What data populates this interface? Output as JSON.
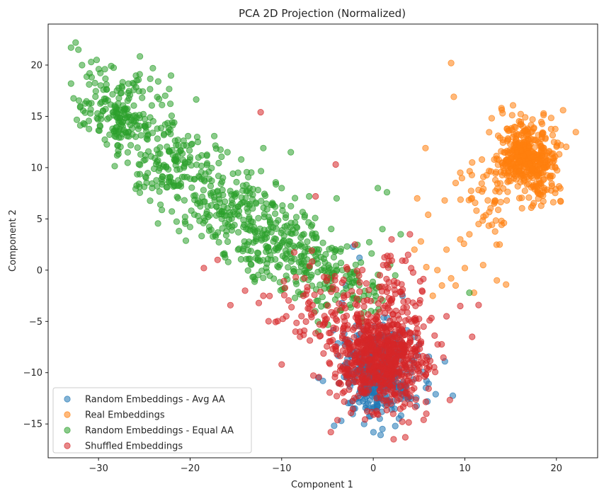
{
  "chart_data": {
    "type": "scatter",
    "title": "PCA 2D Projection (Normalized)",
    "xlabel": "Component 1",
    "ylabel": "Component 2",
    "xlim": [
      -35.5,
      24.5
    ],
    "ylim": [
      -18.3,
      24.0
    ],
    "xticks": [
      -30,
      -20,
      -10,
      0,
      10,
      20
    ],
    "yticks": [
      -15,
      -10,
      -5,
      0,
      5,
      10,
      15,
      20
    ],
    "grid": false,
    "legend_position": "lower-left",
    "marker_alpha": 0.55,
    "series": [
      {
        "name": "Random Embeddings - Avg AA",
        "color": "#1f77b4",
        "clusters": [
          {
            "cx": 0.5,
            "cy": -10.0,
            "sx": 2.0,
            "sy": 2.2,
            "n": 420
          }
        ],
        "points": [
          [
            -3.5,
            -14.7
          ],
          [
            -2.0,
            -13.5
          ],
          [
            -6.0,
            -10.5
          ],
          [
            -5.5,
            -10.8
          ],
          [
            -1.0,
            -15.0
          ],
          [
            1.0,
            -15.5
          ],
          [
            -2.2,
            2.3
          ],
          [
            -1.5,
            1.2
          ],
          [
            2.4,
            -15.2
          ],
          [
            -3.0,
            -1.5
          ],
          [
            3.2,
            -2.5
          ],
          [
            4.5,
            -6.5
          ]
        ]
      },
      {
        "name": "Real Embeddings",
        "color": "#ff7f0e",
        "clusters": [
          {
            "cx": 16.8,
            "cy": 10.8,
            "sx": 1.7,
            "sy": 1.8,
            "n": 480
          },
          {
            "cx": 12.5,
            "cy": 6.5,
            "sx": 1.5,
            "sy": 1.8,
            "n": 40
          }
        ],
        "points": [
          [
            8.5,
            20.2
          ],
          [
            8.8,
            16.9
          ],
          [
            14.0,
            15.8
          ],
          [
            5.7,
            11.9
          ],
          [
            6.0,
            5.4
          ],
          [
            4.8,
            7.0
          ],
          [
            5.2,
            2.8
          ],
          [
            4.5,
            2.0
          ],
          [
            5.8,
            0.3
          ],
          [
            7.0,
            0.0
          ],
          [
            7.5,
            -1.5
          ],
          [
            9.0,
            -1.5
          ],
          [
            11.0,
            -2.2
          ],
          [
            14.5,
            -1.4
          ],
          [
            12.0,
            0.5
          ],
          [
            13.5,
            -1.0
          ],
          [
            9.5,
            3.0
          ],
          [
            10.5,
            3.5
          ],
          [
            11.5,
            4.5
          ],
          [
            13.8,
            2.5
          ],
          [
            14.0,
            4.8
          ],
          [
            8.0,
            2.0
          ],
          [
            10.0,
            0.2
          ],
          [
            6.5,
            -2.5
          ],
          [
            8.5,
            -0.8
          ],
          [
            7.8,
            6.8
          ],
          [
            9.0,
            8.5
          ],
          [
            9.5,
            9.5
          ],
          [
            10.8,
            10.5
          ]
        ]
      },
      {
        "name": "Random Embeddings - Equal AA",
        "color": "#2ca02c",
        "clusters": [
          {
            "cx": -27.5,
            "cy": 15.5,
            "sx": 2.4,
            "sy": 2.0,
            "n": 200
          },
          {
            "cx": -21.5,
            "cy": 10.0,
            "sx": 2.6,
            "sy": 2.2,
            "n": 170
          },
          {
            "cx": -15.5,
            "cy": 6.0,
            "sx": 2.6,
            "sy": 2.0,
            "n": 160
          },
          {
            "cx": -11.0,
            "cy": 3.0,
            "sx": 2.4,
            "sy": 1.8,
            "n": 150
          },
          {
            "cx": -6.5,
            "cy": 0.5,
            "sx": 2.6,
            "sy": 1.7,
            "n": 110
          },
          {
            "cx": -2.5,
            "cy": -2.0,
            "sx": 2.6,
            "sy": 1.6,
            "n": 60
          }
        ],
        "points": [
          [
            -33.0,
            21.7
          ],
          [
            -32.5,
            22.2
          ],
          [
            -32.2,
            21.5
          ],
          [
            -30.8,
            20.3
          ],
          [
            -30.2,
            20.5
          ],
          [
            -31.8,
            20.0
          ],
          [
            -33.0,
            18.2
          ],
          [
            -25.5,
            19.1
          ],
          [
            -12.0,
            11.9
          ],
          [
            -9.0,
            11.5
          ],
          [
            -7.0,
            7.2
          ],
          [
            -4.0,
            7.0
          ],
          [
            0.5,
            8.0
          ],
          [
            1.5,
            7.6
          ],
          [
            -10.0,
            8.0
          ],
          [
            -6.0,
            -6.0
          ],
          [
            10.5,
            -2.2
          ],
          [
            3.0,
            3.5
          ],
          [
            1.0,
            4.0
          ]
        ]
      },
      {
        "name": "Shuffled Embeddings",
        "color": "#d62728",
        "clusters": [
          {
            "cx": 0.8,
            "cy": -8.5,
            "sx": 2.7,
            "sy": 2.4,
            "n": 700
          },
          {
            "cx": -5.0,
            "cy": -3.5,
            "sx": 3.0,
            "sy": 2.0,
            "n": 90
          },
          {
            "cx": 2.5,
            "cy": -2.0,
            "sx": 2.0,
            "sy": 1.8,
            "n": 50
          }
        ],
        "points": [
          [
            -12.3,
            15.4
          ],
          [
            -4.1,
            10.3
          ],
          [
            -18.5,
            0.2
          ],
          [
            -17.0,
            1.0
          ],
          [
            -12.0,
            -2.5
          ],
          [
            -12.5,
            -3.2
          ],
          [
            -14.0,
            -2.0
          ],
          [
            -10.0,
            -9.2
          ],
          [
            9.5,
            -3.5
          ],
          [
            11.5,
            -3.4
          ],
          [
            10.8,
            -6.5
          ],
          [
            8.0,
            -4.5
          ],
          [
            3.5,
            -16.3
          ],
          [
            5.8,
            -14.0
          ],
          [
            4.0,
            3.5
          ],
          [
            3.8,
            1.5
          ],
          [
            -2.0,
            2.5
          ],
          [
            -6.3,
            7.2
          ],
          [
            -8.0,
            -6.0
          ],
          [
            -9.5,
            -4.5
          ],
          [
            5.5,
            -14.6
          ],
          [
            2.0,
            3.0
          ]
        ]
      }
    ]
  }
}
